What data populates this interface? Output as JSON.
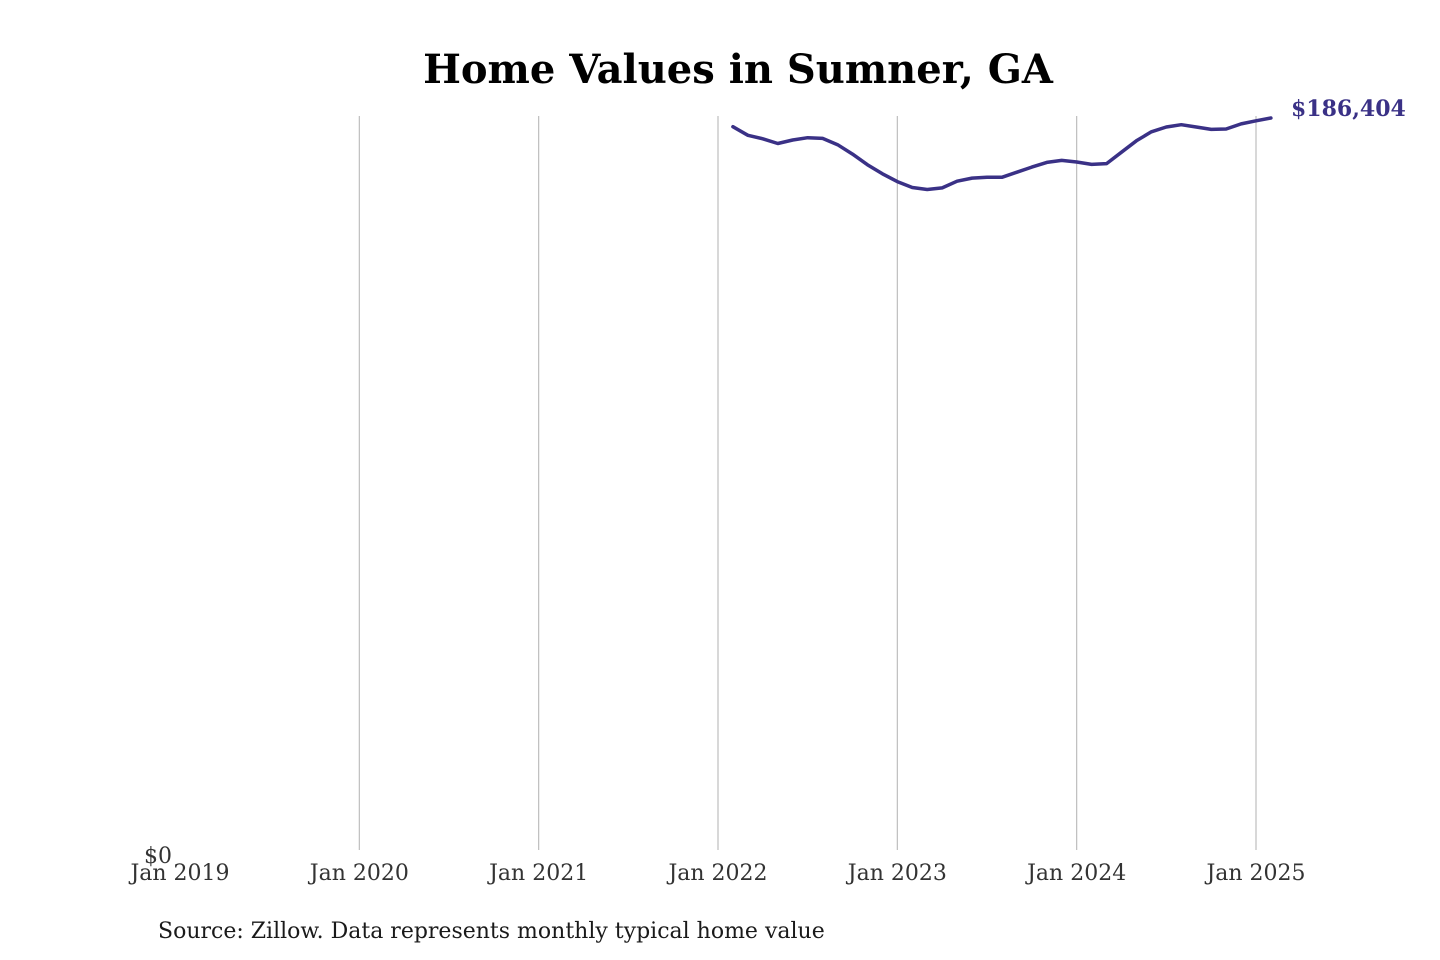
{
  "chart_data": {
    "type": "line",
    "title": "Home Values in Sumner, GA",
    "xlabel": "",
    "ylabel": "",
    "x_ticks": [
      "Jan 2019",
      "Jan 2020",
      "Jan 2021",
      "Jan 2022",
      "Jan 2023",
      "Jan 2024",
      "Jan 2025"
    ],
    "y_ticks": [
      "$0"
    ],
    "ylim": [
      0,
      186404
    ],
    "xlim": [
      "2019-01",
      "2025-01"
    ],
    "grid": "vertical",
    "end_label": "$186,404",
    "series": [
      {
        "color": "#3a3186",
        "points": [
          {
            "x": "2022-02",
            "y": 184200
          },
          {
            "x": "2022-03",
            "y": 182000
          },
          {
            "x": "2022-04",
            "y": 181100
          },
          {
            "x": "2022-05",
            "y": 179900
          },
          {
            "x": "2022-06",
            "y": 180800
          },
          {
            "x": "2022-07",
            "y": 181400
          },
          {
            "x": "2022-08",
            "y": 181200
          },
          {
            "x": "2022-09",
            "y": 179600
          },
          {
            "x": "2022-10",
            "y": 177200
          },
          {
            "x": "2022-11",
            "y": 174500
          },
          {
            "x": "2022-12",
            "y": 172200
          },
          {
            "x": "2023-01",
            "y": 170200
          },
          {
            "x": "2023-02",
            "y": 168700
          },
          {
            "x": "2023-03",
            "y": 168200
          },
          {
            "x": "2023-04",
            "y": 168600
          },
          {
            "x": "2023-05",
            "y": 170300
          },
          {
            "x": "2023-06",
            "y": 171100
          },
          {
            "x": "2023-07",
            "y": 171300
          },
          {
            "x": "2023-08",
            "y": 171300
          },
          {
            "x": "2023-09",
            "y": 172600
          },
          {
            "x": "2023-10",
            "y": 173900
          },
          {
            "x": "2023-11",
            "y": 175100
          },
          {
            "x": "2023-12",
            "y": 175600
          },
          {
            "x": "2024-01",
            "y": 175200
          },
          {
            "x": "2024-02",
            "y": 174600
          },
          {
            "x": "2024-03",
            "y": 174800
          },
          {
            "x": "2024-04",
            "y": 177700
          },
          {
            "x": "2024-05",
            "y": 180600
          },
          {
            "x": "2024-06",
            "y": 182900
          },
          {
            "x": "2024-07",
            "y": 184100
          },
          {
            "x": "2024-08",
            "y": 184700
          },
          {
            "x": "2024-09",
            "y": 184100
          },
          {
            "x": "2024-10",
            "y": 183500
          },
          {
            "x": "2024-11",
            "y": 183600
          },
          {
            "x": "2024-12",
            "y": 184900
          },
          {
            "x": "2025-01",
            "y": 185700
          },
          {
            "x": "2025-02",
            "y": 186404
          }
        ]
      }
    ],
    "source": "Source: Zillow. Data represents monthly typical home value"
  }
}
